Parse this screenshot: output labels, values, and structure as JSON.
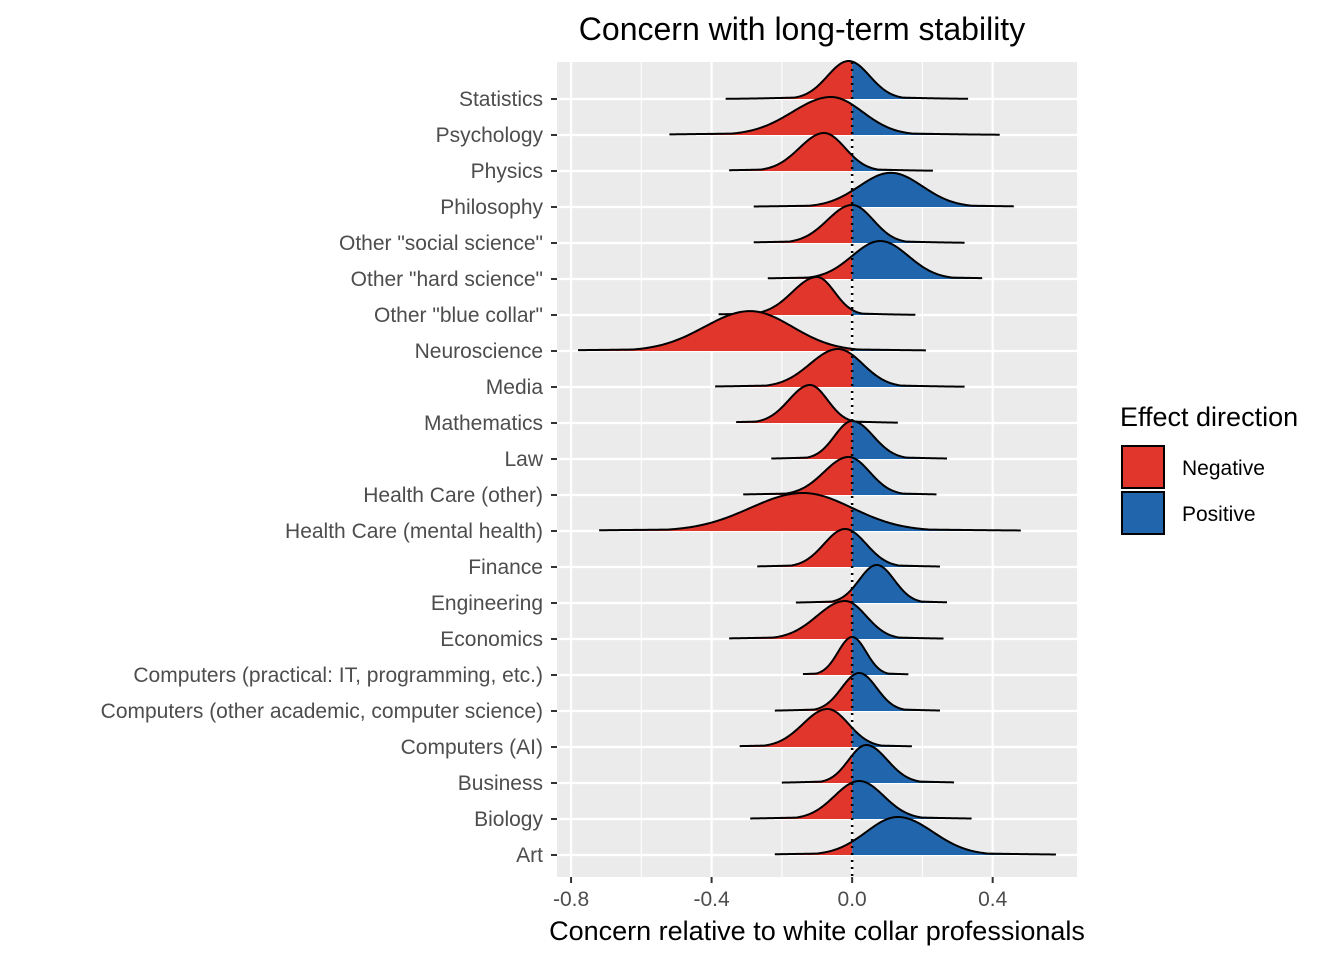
{
  "chart_data": {
    "type": "ridgeline",
    "title": "Concern with long-term stability",
    "xlabel": "Concern relative to white collar professionals",
    "ylabel": "",
    "xlim": [
      -0.84,
      0.64
    ],
    "x_ticks": [
      -0.8,
      -0.4,
      0.0,
      0.4
    ],
    "x_tick_labels": [
      "-0.8",
      "-0.4",
      "0.0",
      "0.4"
    ],
    "reference_line": 0.0,
    "grid": true,
    "legend": {
      "title": "Effect direction",
      "position": "right",
      "entries": [
        {
          "label": "Negative",
          "color": "#E0362C"
        },
        {
          "label": "Positive",
          "color": "#2166AC"
        }
      ]
    },
    "categories": [
      "Statistics",
      "Psychology",
      "Physics",
      "Philosophy",
      "Other \"social science\"",
      "Other \"hard science\"",
      "Other \"blue collar\"",
      "Neuroscience",
      "Media",
      "Mathematics",
      "Law",
      "Health Care (other)",
      "Health Care (mental health)",
      "Finance",
      "Engineering",
      "Economics",
      "Computers (practical: IT, programming, etc.)",
      "Computers (other academic, computer science)",
      "Computers (AI)",
      "Business",
      "Biology",
      "Art"
    ],
    "distributions": [
      {
        "category": "Statistics",
        "min": -0.36,
        "max": 0.33,
        "mode": -0.01,
        "sd_left": 0.06,
        "sd_right": 0.06,
        "height": 1.0
      },
      {
        "category": "Psychology",
        "min": -0.52,
        "max": 0.42,
        "mode": -0.06,
        "sd_left": 0.11,
        "sd_right": 0.09,
        "height": 1.0
      },
      {
        "category": "Physics",
        "min": -0.35,
        "max": 0.23,
        "mode": -0.08,
        "sd_left": 0.07,
        "sd_right": 0.06,
        "height": 1.0
      },
      {
        "category": "Philosophy",
        "min": -0.28,
        "max": 0.46,
        "mode": 0.11,
        "sd_left": 0.09,
        "sd_right": 0.09,
        "height": 0.9
      },
      {
        "category": "Other \"social science\"",
        "min": -0.28,
        "max": 0.32,
        "mode": 0.0,
        "sd_left": 0.07,
        "sd_right": 0.06,
        "height": 1.0
      },
      {
        "category": "Other \"hard science\"",
        "min": -0.24,
        "max": 0.37,
        "mode": 0.08,
        "sd_left": 0.08,
        "sd_right": 0.08,
        "height": 1.0
      },
      {
        "category": "Other \"blue collar\"",
        "min": -0.38,
        "max": 0.18,
        "mode": -0.1,
        "sd_left": 0.07,
        "sd_right": 0.05,
        "height": 1.0
      },
      {
        "category": "Neuroscience",
        "min": -0.78,
        "max": 0.21,
        "mode": -0.29,
        "sd_left": 0.13,
        "sd_right": 0.12,
        "height": 1.05
      },
      {
        "category": "Media",
        "min": -0.39,
        "max": 0.32,
        "mode": -0.04,
        "sd_left": 0.08,
        "sd_right": 0.07,
        "height": 1.0
      },
      {
        "category": "Mathematics",
        "min": -0.33,
        "max": 0.13,
        "mode": -0.12,
        "sd_left": 0.06,
        "sd_right": 0.05,
        "height": 1.0
      },
      {
        "category": "Law",
        "min": -0.23,
        "max": 0.27,
        "mode": 0.0,
        "sd_left": 0.05,
        "sd_right": 0.06,
        "height": 1.0
      },
      {
        "category": "Health Care (other)",
        "min": -0.31,
        "max": 0.24,
        "mode": -0.01,
        "sd_left": 0.07,
        "sd_right": 0.06,
        "height": 1.0
      },
      {
        "category": "Health Care (mental health)",
        "min": -0.72,
        "max": 0.48,
        "mode": -0.14,
        "sd_left": 0.15,
        "sd_right": 0.14,
        "height": 1.0
      },
      {
        "category": "Finance",
        "min": -0.27,
        "max": 0.25,
        "mode": -0.02,
        "sd_left": 0.06,
        "sd_right": 0.06,
        "height": 1.0
      },
      {
        "category": "Engineering",
        "min": -0.16,
        "max": 0.27,
        "mode": 0.07,
        "sd_left": 0.05,
        "sd_right": 0.05,
        "height": 1.0
      },
      {
        "category": "Economics",
        "min": -0.35,
        "max": 0.26,
        "mode": -0.02,
        "sd_left": 0.08,
        "sd_right": 0.06,
        "height": 1.0
      },
      {
        "category": "Computers (practical: IT, programming, etc.)",
        "min": -0.14,
        "max": 0.16,
        "mode": 0.0,
        "sd_left": 0.04,
        "sd_right": 0.04,
        "height": 1.0
      },
      {
        "category": "Computers (other academic, computer science)",
        "min": -0.22,
        "max": 0.25,
        "mode": 0.02,
        "sd_left": 0.05,
        "sd_right": 0.05,
        "height": 1.0
      },
      {
        "category": "Computers (AI)",
        "min": -0.32,
        "max": 0.17,
        "mode": -0.07,
        "sd_left": 0.07,
        "sd_right": 0.06,
        "height": 1.0
      },
      {
        "category": "Business",
        "min": -0.2,
        "max": 0.29,
        "mode": 0.04,
        "sd_left": 0.05,
        "sd_right": 0.06,
        "height": 1.0
      },
      {
        "category": "Biology",
        "min": -0.29,
        "max": 0.34,
        "mode": 0.02,
        "sd_left": 0.07,
        "sd_right": 0.07,
        "height": 1.0
      },
      {
        "category": "Art",
        "min": -0.22,
        "max": 0.58,
        "mode": 0.13,
        "sd_left": 0.09,
        "sd_right": 0.1,
        "height": 1.0
      }
    ]
  }
}
